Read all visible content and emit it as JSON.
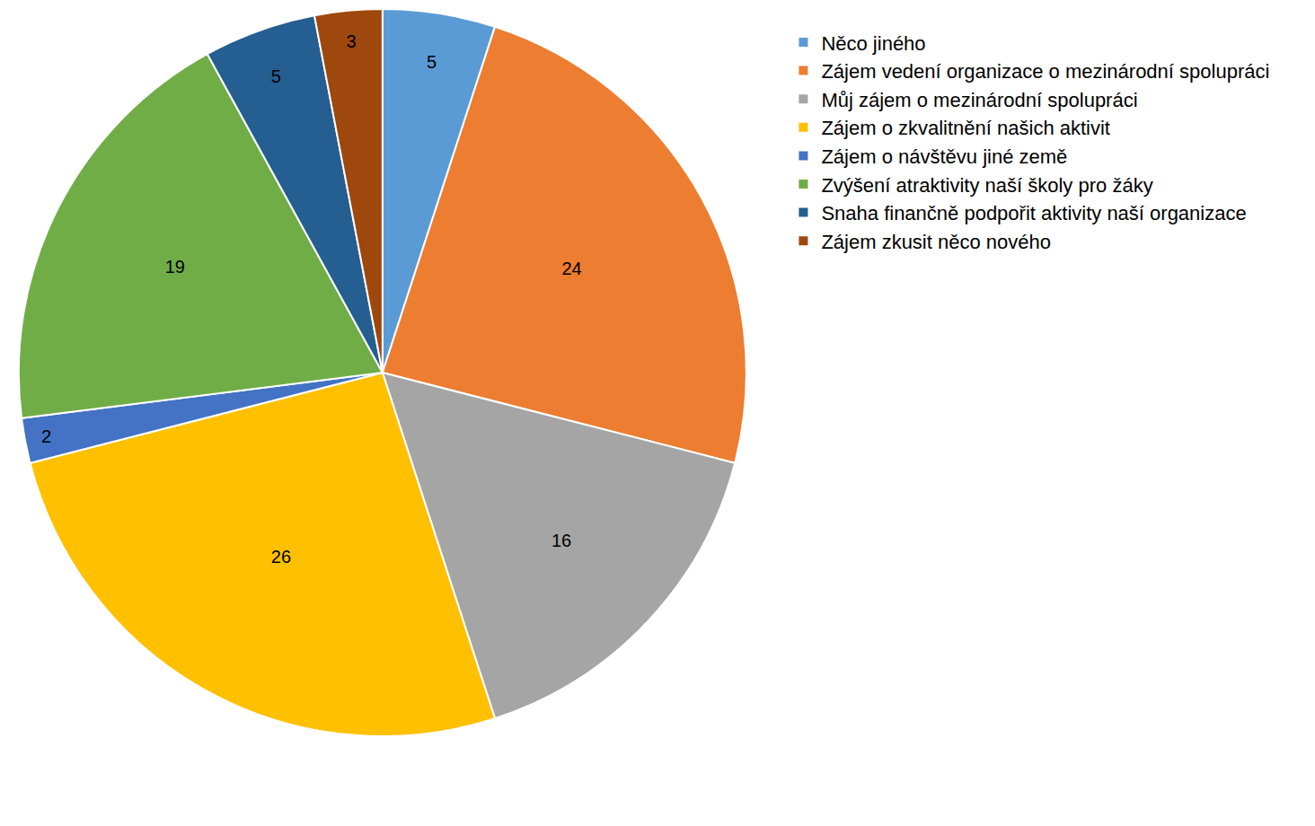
{
  "chart_data": {
    "type": "pie",
    "categories": [
      "Něco jiného",
      "Zájem vedení organizace o mezinárodní spolupráci",
      "Můj zájem o mezinárodní spolupráci",
      "Zájem o zkvalitnění našich aktivit",
      "Zájem o návštěvu jiné země",
      "Zvýšení atraktivity naší školy pro žáky",
      "Snaha finančně podpořit aktivity naší organizace",
      "Zájem zkusit něco nového"
    ],
    "values": [
      5,
      24,
      16,
      26,
      2,
      19,
      5,
      3
    ],
    "colors": [
      "#5b9bd5",
      "#ed7d31",
      "#a5a5a5",
      "#ffc000",
      "#4472c4",
      "#70ad47",
      "#255e91",
      "#9e480e"
    ],
    "data_labels": true,
    "legend": "right"
  }
}
